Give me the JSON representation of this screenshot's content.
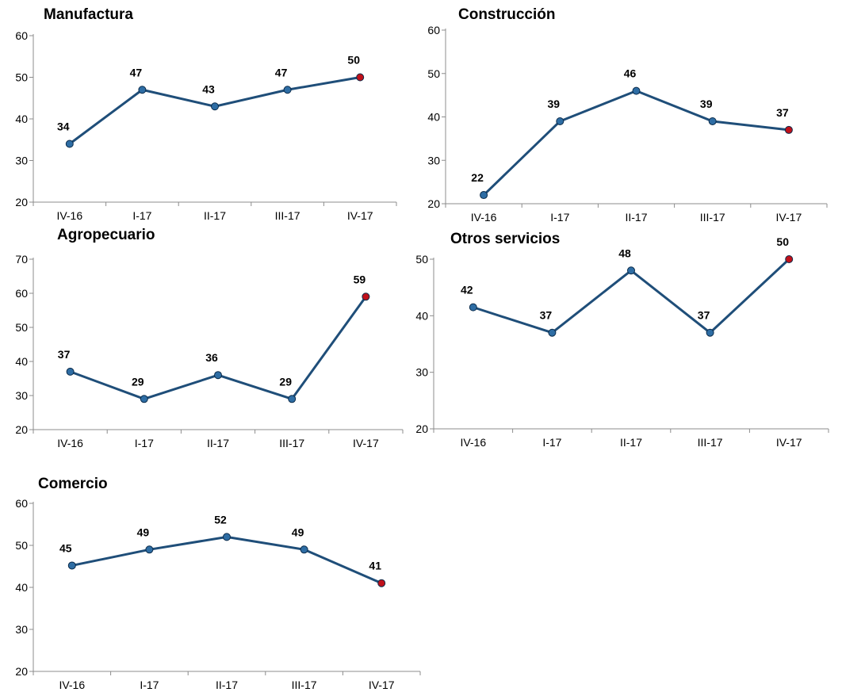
{
  "colors": {
    "line": "#1f4e79",
    "marker": "#2e6da4",
    "marker_highlight": "#c0101a",
    "axis": "#8c8c8c"
  },
  "chart_data": [
    {
      "type": "line",
      "title": "Manufactura",
      "categories": [
        "IV-16",
        "I-17",
        "II-17",
        "III-17",
        "IV-17"
      ],
      "values": [
        34,
        47,
        43,
        47,
        50
      ],
      "labels": [
        "34",
        "47",
        "43",
        "47",
        "50"
      ],
      "yticks": [
        "20",
        "30",
        "40",
        "50",
        "60"
      ],
      "ylim": [
        20,
        60
      ],
      "grid": false,
      "legend": "none",
      "highlight_last": true
    },
    {
      "type": "line",
      "title": "Construcción",
      "categories": [
        "IV-16",
        "I-17",
        "II-17",
        "III-17",
        "IV-17"
      ],
      "values": [
        22,
        39,
        46,
        39,
        37
      ],
      "labels": [
        "22",
        "39",
        "46",
        "39",
        "37"
      ],
      "yticks": [
        "20",
        "30",
        "40",
        "50",
        "60"
      ],
      "ylim": [
        20,
        60
      ],
      "grid": false,
      "legend": "none",
      "highlight_last": true
    },
    {
      "type": "line",
      "title": "Agropecuario",
      "categories": [
        "IV-16",
        "I-17",
        "II-17",
        "III-17",
        "IV-17"
      ],
      "values": [
        37,
        29,
        36,
        29,
        59
      ],
      "labels": [
        "37",
        "29",
        "36",
        "29",
        "59"
      ],
      "yticks": [
        "20",
        "30",
        "40",
        "50",
        "60",
        "70"
      ],
      "ylim": [
        20,
        70
      ],
      "grid": false,
      "legend": "none",
      "highlight_last": true
    },
    {
      "type": "line",
      "title": "Otros servicios",
      "categories": [
        "IV-16",
        "I-17",
        "II-17",
        "III-17",
        "IV-17"
      ],
      "values": [
        41.5,
        37,
        48,
        37,
        50
      ],
      "labels": [
        "42",
        "37",
        "48",
        "37",
        "50"
      ],
      "yticks": [
        "20",
        "30",
        "40",
        "50"
      ],
      "ylim": [
        20,
        50
      ],
      "grid": false,
      "legend": "none",
      "highlight_last": true
    },
    {
      "type": "line",
      "title": "Comercio",
      "categories": [
        "IV-16",
        "I-17",
        "II-17",
        "III-17",
        "IV-17"
      ],
      "values": [
        45.2,
        49,
        52,
        49,
        41
      ],
      "labels": [
        "45",
        "49",
        "52",
        "49",
        "41"
      ],
      "yticks": [
        "20",
        "30",
        "40",
        "50",
        "60"
      ],
      "ylim": [
        20,
        60
      ],
      "grid": false,
      "legend": "none",
      "highlight_last": true
    }
  ]
}
